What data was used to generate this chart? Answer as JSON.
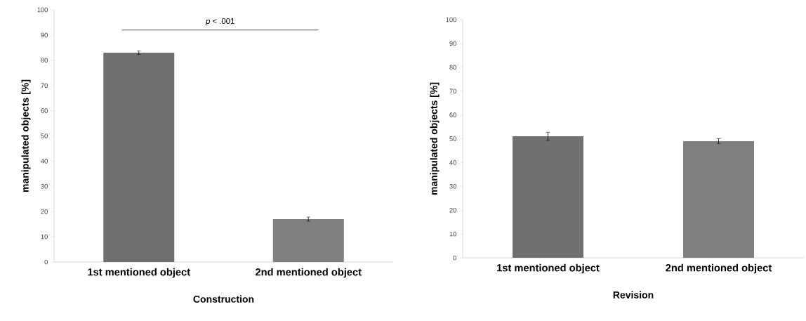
{
  "chart_data": [
    {
      "type": "bar",
      "categories": [
        "1st mentioned object",
        "2nd mentioned object"
      ],
      "values": [
        83,
        17
      ],
      "errors": [
        0.7,
        0.8
      ],
      "colors": [
        "#707070",
        "#808080"
      ],
      "xlabel": "Construction",
      "ylabel": "manipulated objects [%]",
      "ylim": [
        0,
        100
      ],
      "yticks": [
        0,
        10,
        20,
        30,
        40,
        50,
        60,
        70,
        80,
        90,
        100
      ],
      "annotations": [
        "*p* < .001"
      ]
    },
    {
      "type": "bar",
      "categories": [
        "1st mentioned object",
        "2nd mentioned object"
      ],
      "values": [
        51,
        49
      ],
      "errors": [
        1.7,
        1.0
      ],
      "colors": [
        "#707070",
        "#808080"
      ],
      "xlabel": "Revision",
      "ylabel": "manipulated objects [%]",
      "ylim": [
        0,
        100
      ],
      "yticks": [
        0,
        10,
        20,
        30,
        40,
        50,
        60,
        70,
        80,
        90,
        100
      ]
    }
  ]
}
